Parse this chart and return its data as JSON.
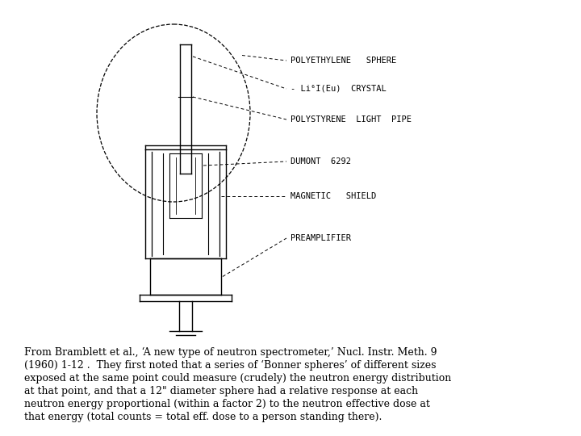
{
  "bg_color": "#ffffff",
  "line_color": "#000000",
  "text_color": "#000000",
  "fig_width": 7.2,
  "fig_height": 5.4,
  "labels": {
    "sphere": "POLYETHYLENE   SPHERE",
    "crystal": "- Li⁶I(Eu)  CRYSTAL",
    "lightpipe": "POLYSTYRENE  LIGHT  PIPE",
    "dumont": "DUMONT  6292",
    "shield": "MAGNETIC   SHIELD",
    "preamp": "PREAMPLIFIER"
  },
  "caption_lines": [
    "From Bramblett et al., ‘A new type of neutron spectrometer,’ Nucl. Instr. Meth. 9",
    "(1960) 1-12 .  They first noted that a series of ‘Bonner spheres’ of different sizes",
    "exposed at the same point could measure (crudely) the neutron energy distribution",
    "at that point, and that a 12\" diameter sphere had a relative response at each",
    "neutron energy proportional (within a factor 2) to the neutron effective dose at",
    "that energy (total counts = total eff. dose to a person standing there)."
  ],
  "caption_fontsize": 9.0,
  "label_fontsize": 7.5
}
